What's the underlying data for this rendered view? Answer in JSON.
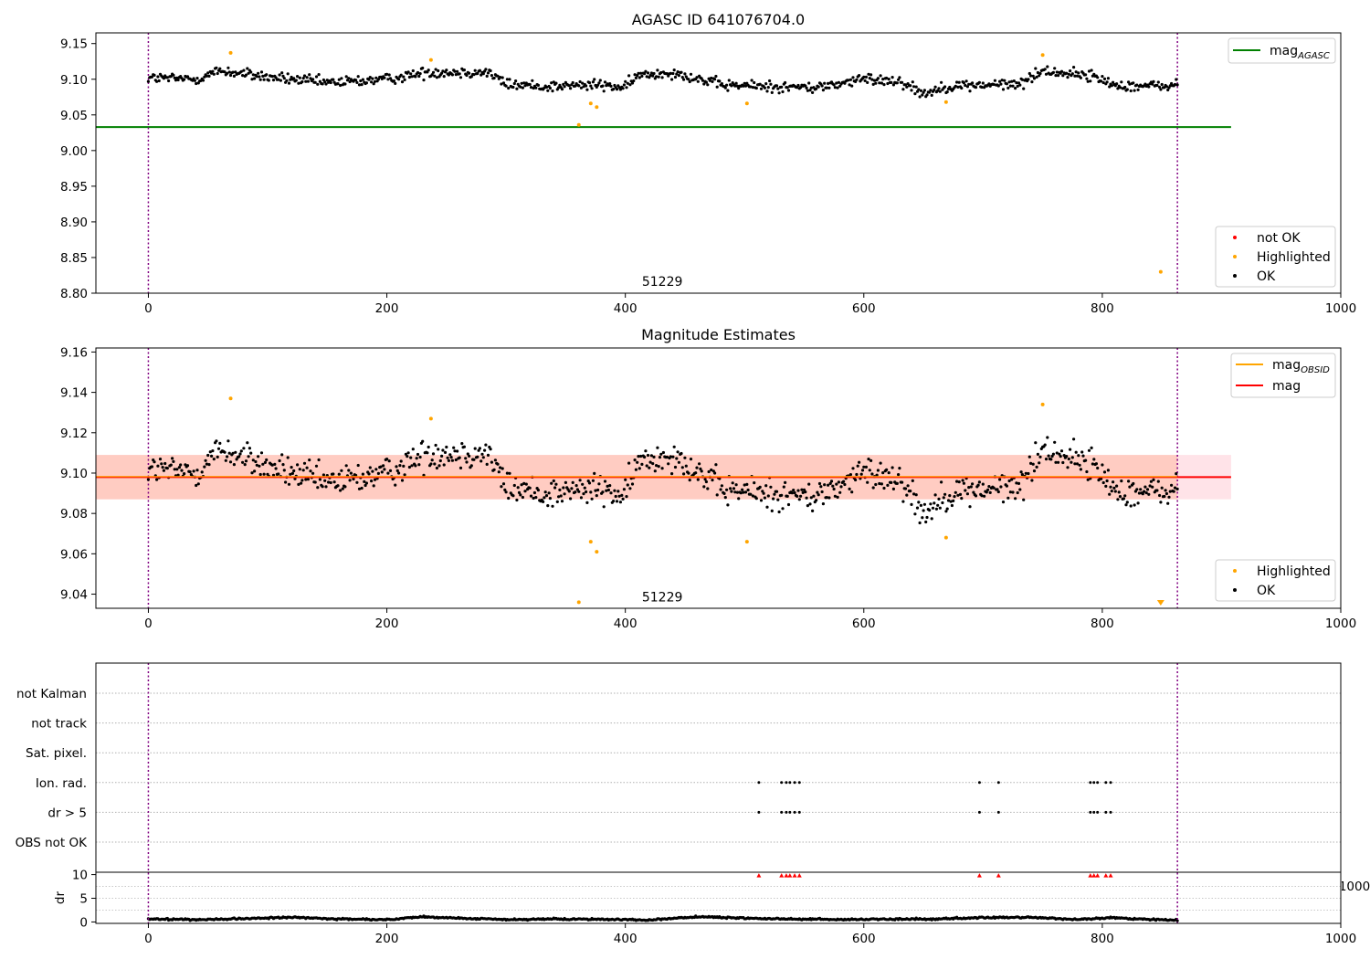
{
  "chart_data": [
    {
      "type": "scatter",
      "title": "AGASC ID 641076704.0",
      "xlim": [
        -44,
        1000
      ],
      "ylim": [
        8.8,
        9.165
      ],
      "xticks": [
        "0",
        "200",
        "400",
        "600",
        "800",
        "1000"
      ],
      "yticks": [
        "8.80",
        "8.85",
        "8.90",
        "8.95",
        "9.00",
        "9.05",
        "9.10",
        "9.15"
      ],
      "grid": false,
      "vlines": [
        0,
        863
      ],
      "mag_agasc": 9.033,
      "annotation": {
        "text": "51229",
        "x": 431,
        "y": 8.81
      },
      "legend_lines": [
        {
          "label": "mag",
          "sub": "AGASC",
          "color": "#008000"
        }
      ],
      "legend_points": [
        {
          "label": "not OK",
          "color": "#ff0000"
        },
        {
          "label": "Highlighted",
          "color": "#ffa500"
        },
        {
          "label": "OK",
          "color": "#000000"
        }
      ],
      "highlighted": [
        [
          69,
          9.137
        ],
        [
          237,
          9.127
        ],
        [
          361,
          9.036
        ],
        [
          371,
          9.066
        ],
        [
          376,
          9.061
        ],
        [
          502,
          9.066
        ],
        [
          669,
          9.068
        ],
        [
          750,
          9.134
        ],
        [
          849,
          8.83
        ]
      ],
      "ok_profile": [
        [
          0,
          9.102
        ],
        [
          40,
          9.1
        ],
        [
          60,
          9.112
        ],
        [
          100,
          9.103
        ],
        [
          150,
          9.095
        ],
        [
          200,
          9.1
        ],
        [
          235,
          9.11
        ],
        [
          285,
          9.11
        ],
        [
          300,
          9.093
        ],
        [
          330,
          9.09
        ],
        [
          380,
          9.092
        ],
        [
          400,
          9.088
        ],
        [
          410,
          9.105
        ],
        [
          440,
          9.11
        ],
        [
          480,
          9.092
        ],
        [
          560,
          9.088
        ],
        [
          600,
          9.1
        ],
        [
          630,
          9.098
        ],
        [
          650,
          9.08
        ],
        [
          670,
          9.09
        ],
        [
          700,
          9.092
        ],
        [
          730,
          9.093
        ],
        [
          750,
          9.112
        ],
        [
          790,
          9.105
        ],
        [
          810,
          9.092
        ],
        [
          840,
          9.09
        ],
        [
          863,
          9.092
        ]
      ]
    },
    {
      "type": "scatter",
      "title": "Magnitude Estimates",
      "xlim": [
        -44,
        1000
      ],
      "ylim": [
        9.033,
        9.162
      ],
      "xticks": [
        "0",
        "200",
        "400",
        "600",
        "800",
        "1000"
      ],
      "yticks": [
        "9.04",
        "9.06",
        "9.08",
        "9.10",
        "9.12",
        "9.14",
        "9.16"
      ],
      "grid": false,
      "vlines": [
        0,
        863
      ],
      "mag": 9.098,
      "mag_band": [
        9.087,
        9.109
      ],
      "band_xlim": [
        -44,
        908
      ],
      "annotation": {
        "text": "51229",
        "x": 431,
        "y": 9.035
      },
      "legend_lines": [
        {
          "label": "mag",
          "sub": "OBSID",
          "color": "#ffa500"
        },
        {
          "label": "mag",
          "sub": "",
          "color": "#ff0000"
        }
      ],
      "legend_points": [
        {
          "label": "Highlighted",
          "color": "#ffa500"
        },
        {
          "label": "OK",
          "color": "#000000"
        }
      ],
      "highlighted": [
        [
          69,
          9.137
        ],
        [
          237,
          9.127
        ],
        [
          361,
          9.036
        ],
        [
          371,
          9.066
        ],
        [
          376,
          9.061
        ],
        [
          502,
          9.066
        ],
        [
          669,
          9.068
        ],
        [
          750,
          9.134
        ]
      ],
      "ok_profile": [
        [
          0,
          9.102
        ],
        [
          40,
          9.1
        ],
        [
          60,
          9.112
        ],
        [
          100,
          9.103
        ],
        [
          150,
          9.095
        ],
        [
          200,
          9.1
        ],
        [
          235,
          9.11
        ],
        [
          285,
          9.11
        ],
        [
          300,
          9.093
        ],
        [
          330,
          9.09
        ],
        [
          380,
          9.092
        ],
        [
          400,
          9.088
        ],
        [
          410,
          9.105
        ],
        [
          440,
          9.11
        ],
        [
          480,
          9.092
        ],
        [
          560,
          9.088
        ],
        [
          600,
          9.1
        ],
        [
          630,
          9.098
        ],
        [
          650,
          9.08
        ],
        [
          670,
          9.09
        ],
        [
          700,
          9.092
        ],
        [
          730,
          9.093
        ],
        [
          750,
          9.112
        ],
        [
          790,
          9.105
        ],
        [
          810,
          9.092
        ],
        [
          840,
          9.09
        ],
        [
          863,
          9.092
        ]
      ]
    },
    {
      "type": "scatter",
      "xlim": [
        -44,
        1000
      ],
      "xticks": [
        "0",
        "200",
        "400",
        "600",
        "800",
        "1000"
      ],
      "vlines": [
        0,
        863
      ],
      "flag_rows": [
        "not Kalman",
        "not track",
        "Sat. pixel.",
        "Ion. rad.",
        "dr > 5",
        "OBS not OK"
      ],
      "flag_x": [
        512,
        531,
        535,
        538,
        542,
        546,
        697,
        713,
        790,
        793,
        796,
        803,
        807
      ],
      "flagged_rows": [
        "Ion. rad.",
        "dr > 5"
      ],
      "dr": {
        "ylabel": "dr",
        "ylim": [
          -0.3,
          10.5
        ],
        "yticks": [
          "0",
          "5",
          "10"
        ],
        "threshold": 10,
        "profile": [
          [
            0,
            0.6
          ],
          [
            40,
            0.5
          ],
          [
            80,
            0.7
          ],
          [
            120,
            1.0
          ],
          [
            160,
            0.6
          ],
          [
            200,
            0.5
          ],
          [
            230,
            1.1
          ],
          [
            260,
            0.8
          ],
          [
            300,
            0.5
          ],
          [
            340,
            0.6
          ],
          [
            380,
            0.6
          ],
          [
            420,
            0.4
          ],
          [
            460,
            1.1
          ],
          [
            500,
            0.8
          ],
          [
            540,
            0.6
          ],
          [
            580,
            0.5
          ],
          [
            620,
            0.6
          ],
          [
            660,
            0.6
          ],
          [
            700,
            0.9
          ],
          [
            740,
            1.0
          ],
          [
            780,
            0.5
          ],
          [
            810,
            0.9
          ],
          [
            840,
            0.5
          ],
          [
            863,
            0.4
          ]
        ]
      }
    }
  ]
}
